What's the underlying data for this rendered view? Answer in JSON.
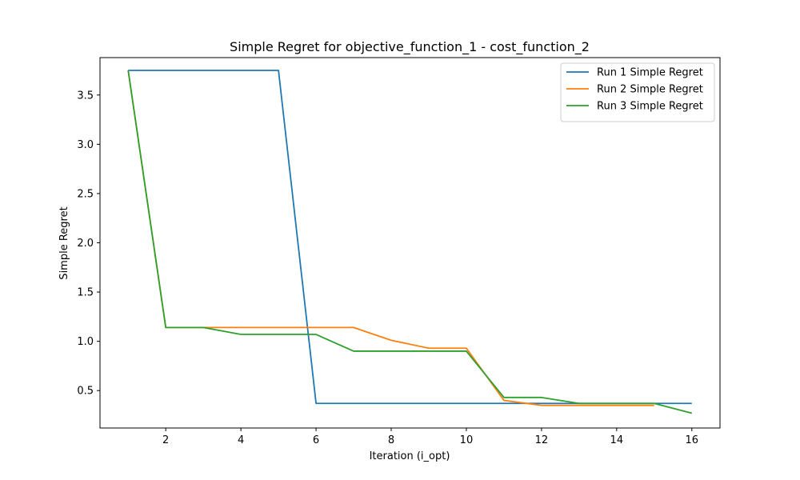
{
  "chart_data": {
    "type": "line",
    "title": "Simple Regret for objective_function_1 - cost_function_2",
    "xlabel": "Iteration (i_opt)",
    "ylabel": "Simple Regret",
    "xlim": [
      0.25,
      16.75
    ],
    "ylim": [
      0.12,
      3.88
    ],
    "xticks": [
      2,
      4,
      6,
      8,
      10,
      12,
      14,
      16
    ],
    "yticks": [
      0.5,
      1.0,
      1.5,
      2.0,
      2.5,
      3.0,
      3.5
    ],
    "yticklabels": [
      "0.5",
      "1.0",
      "1.5",
      "2.0",
      "2.5",
      "3.0",
      "3.5"
    ],
    "grid": false,
    "legend_position": "top-right",
    "series": [
      {
        "name": "Run 1 Simple Regret",
        "color": "#1f77b4",
        "x": [
          1,
          2,
          3,
          4,
          5,
          6,
          7,
          8,
          9,
          10,
          11,
          12,
          13,
          14,
          15,
          16
        ],
        "y": [
          3.75,
          3.75,
          3.75,
          3.75,
          3.75,
          0.37,
          0.37,
          0.37,
          0.37,
          0.37,
          0.37,
          0.37,
          0.37,
          0.37,
          0.37,
          0.37
        ]
      },
      {
        "name": "Run 2 Simple Regret",
        "color": "#ff7f0e",
        "x": [
          1,
          2,
          3,
          4,
          5,
          6,
          7,
          8,
          9,
          10,
          11,
          12,
          13,
          14,
          15
        ],
        "y": [
          3.75,
          1.14,
          1.14,
          1.14,
          1.14,
          1.14,
          1.14,
          1.01,
          0.93,
          0.93,
          0.4,
          0.35,
          0.35,
          0.35,
          0.35
        ]
      },
      {
        "name": "Run 3 Simple Regret",
        "color": "#2ca02c",
        "x": [
          1,
          2,
          3,
          4,
          5,
          6,
          7,
          8,
          9,
          10,
          11,
          12,
          13,
          14,
          15,
          16
        ],
        "y": [
          3.75,
          1.14,
          1.14,
          1.07,
          1.07,
          1.07,
          0.9,
          0.9,
          0.9,
          0.9,
          0.43,
          0.43,
          0.37,
          0.37,
          0.37,
          0.27
        ]
      }
    ]
  }
}
